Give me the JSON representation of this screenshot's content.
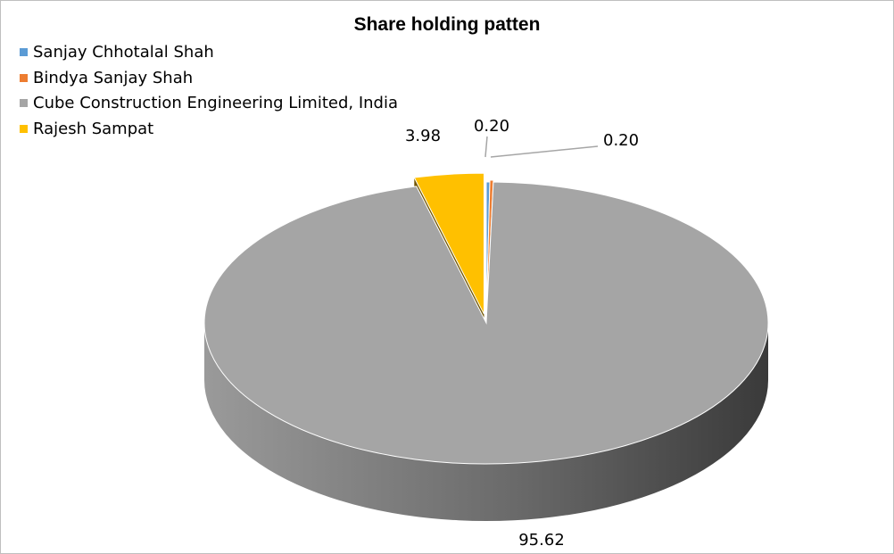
{
  "chart_data": {
    "type": "pie",
    "variant": "3d-exploded",
    "title": "Share holding patten",
    "legend_position": "top-left",
    "slices": [
      {
        "name": "Sanjay Chhotalal Shah",
        "value": 0.2,
        "label": "0.20",
        "color": "#5b9bd5"
      },
      {
        "name": "Bindya Sanjay Shah",
        "value": 0.2,
        "label": "0.20",
        "color": "#ed7d31"
      },
      {
        "name": "Cube Construction Engineering Limited, India",
        "value": 95.62,
        "label": "95.62",
        "color": "#a5a5a5"
      },
      {
        "name": "Rajesh Sampat",
        "value": 3.98,
        "label": "3.98",
        "color": "#ffc000"
      }
    ]
  }
}
